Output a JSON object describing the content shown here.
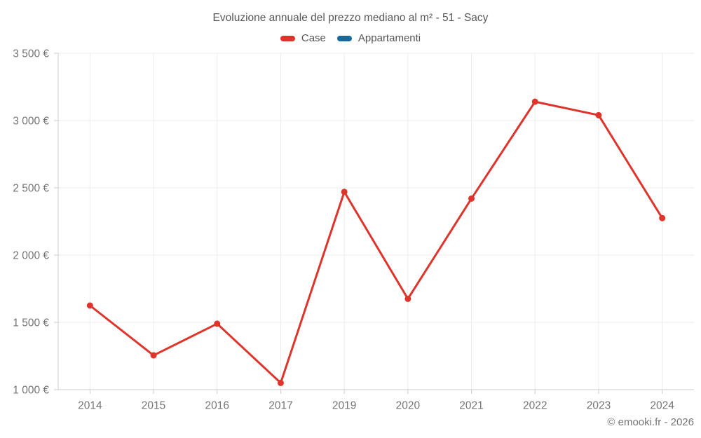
{
  "title": "Evoluzione annuale del prezzo mediano al m² - 51 - Sacy",
  "footer": "© emooki.fr - 2026",
  "legend": [
    {
      "label": "Case",
      "color": "#df342c"
    },
    {
      "label": "Appartamenti",
      "color": "#17699c"
    }
  ],
  "colors": {
    "case_series": "#df342c",
    "appartamenti_series": "#17699c",
    "gridline": "#ececec",
    "axis_line": "#cccccc",
    "tick_label": "#757575",
    "title_text": "#58585a",
    "footer_text": "#757575"
  },
  "chart_data": {
    "type": "line",
    "title": "Evoluzione annuale del prezzo mediano al m² - 51 - Sacy",
    "xlabel": "",
    "ylabel": "",
    "categories": [
      "2014",
      "2015",
      "2016",
      "2017",
      "2019",
      "2020",
      "2021",
      "2022",
      "2023",
      "2024"
    ],
    "series": [
      {
        "name": "Case",
        "color": "#df342c",
        "values": [
          1625,
          1255,
          1490,
          1050,
          2470,
          1675,
          2420,
          3140,
          3040,
          2275
        ]
      },
      {
        "name": "Appartamenti",
        "color": "#17699c",
        "values": []
      }
    ],
    "ylim": [
      1000,
      3500
    ],
    "ytick_step": 500,
    "ytick_labels": [
      "1 000 €",
      "1 500 €",
      "2 000 €",
      "2 500 €",
      "3 000 €",
      "3 500 €"
    ],
    "grid": true,
    "legend_position": "top"
  }
}
